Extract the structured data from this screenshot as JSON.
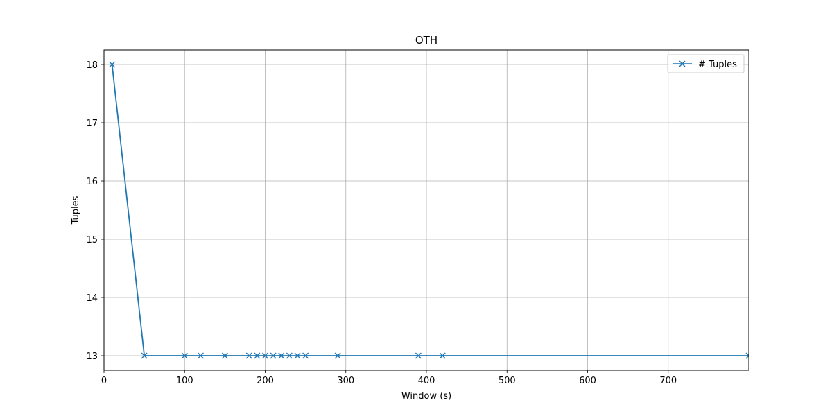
{
  "chart_data": {
    "type": "line",
    "title": "OTH",
    "xlabel": "Window (s)",
    "ylabel": "Tuples",
    "xlim": [
      0,
      800
    ],
    "ylim": [
      12.75,
      18.25
    ],
    "x_ticks": [
      0,
      100,
      200,
      300,
      400,
      500,
      600,
      700
    ],
    "y_ticks": [
      13,
      14,
      15,
      16,
      17,
      18
    ],
    "grid": true,
    "legend_position": "top-right",
    "series": [
      {
        "name": "# Tuples",
        "color": "#1f77b4",
        "marker": "x",
        "x": [
          10,
          50,
          100,
          120,
          150,
          180,
          190,
          200,
          210,
          220,
          230,
          240,
          250,
          290,
          390,
          420,
          800
        ],
        "y": [
          18,
          13,
          13,
          13,
          13,
          13,
          13,
          13,
          13,
          13,
          13,
          13,
          13,
          13,
          13,
          13,
          13
        ]
      }
    ]
  }
}
